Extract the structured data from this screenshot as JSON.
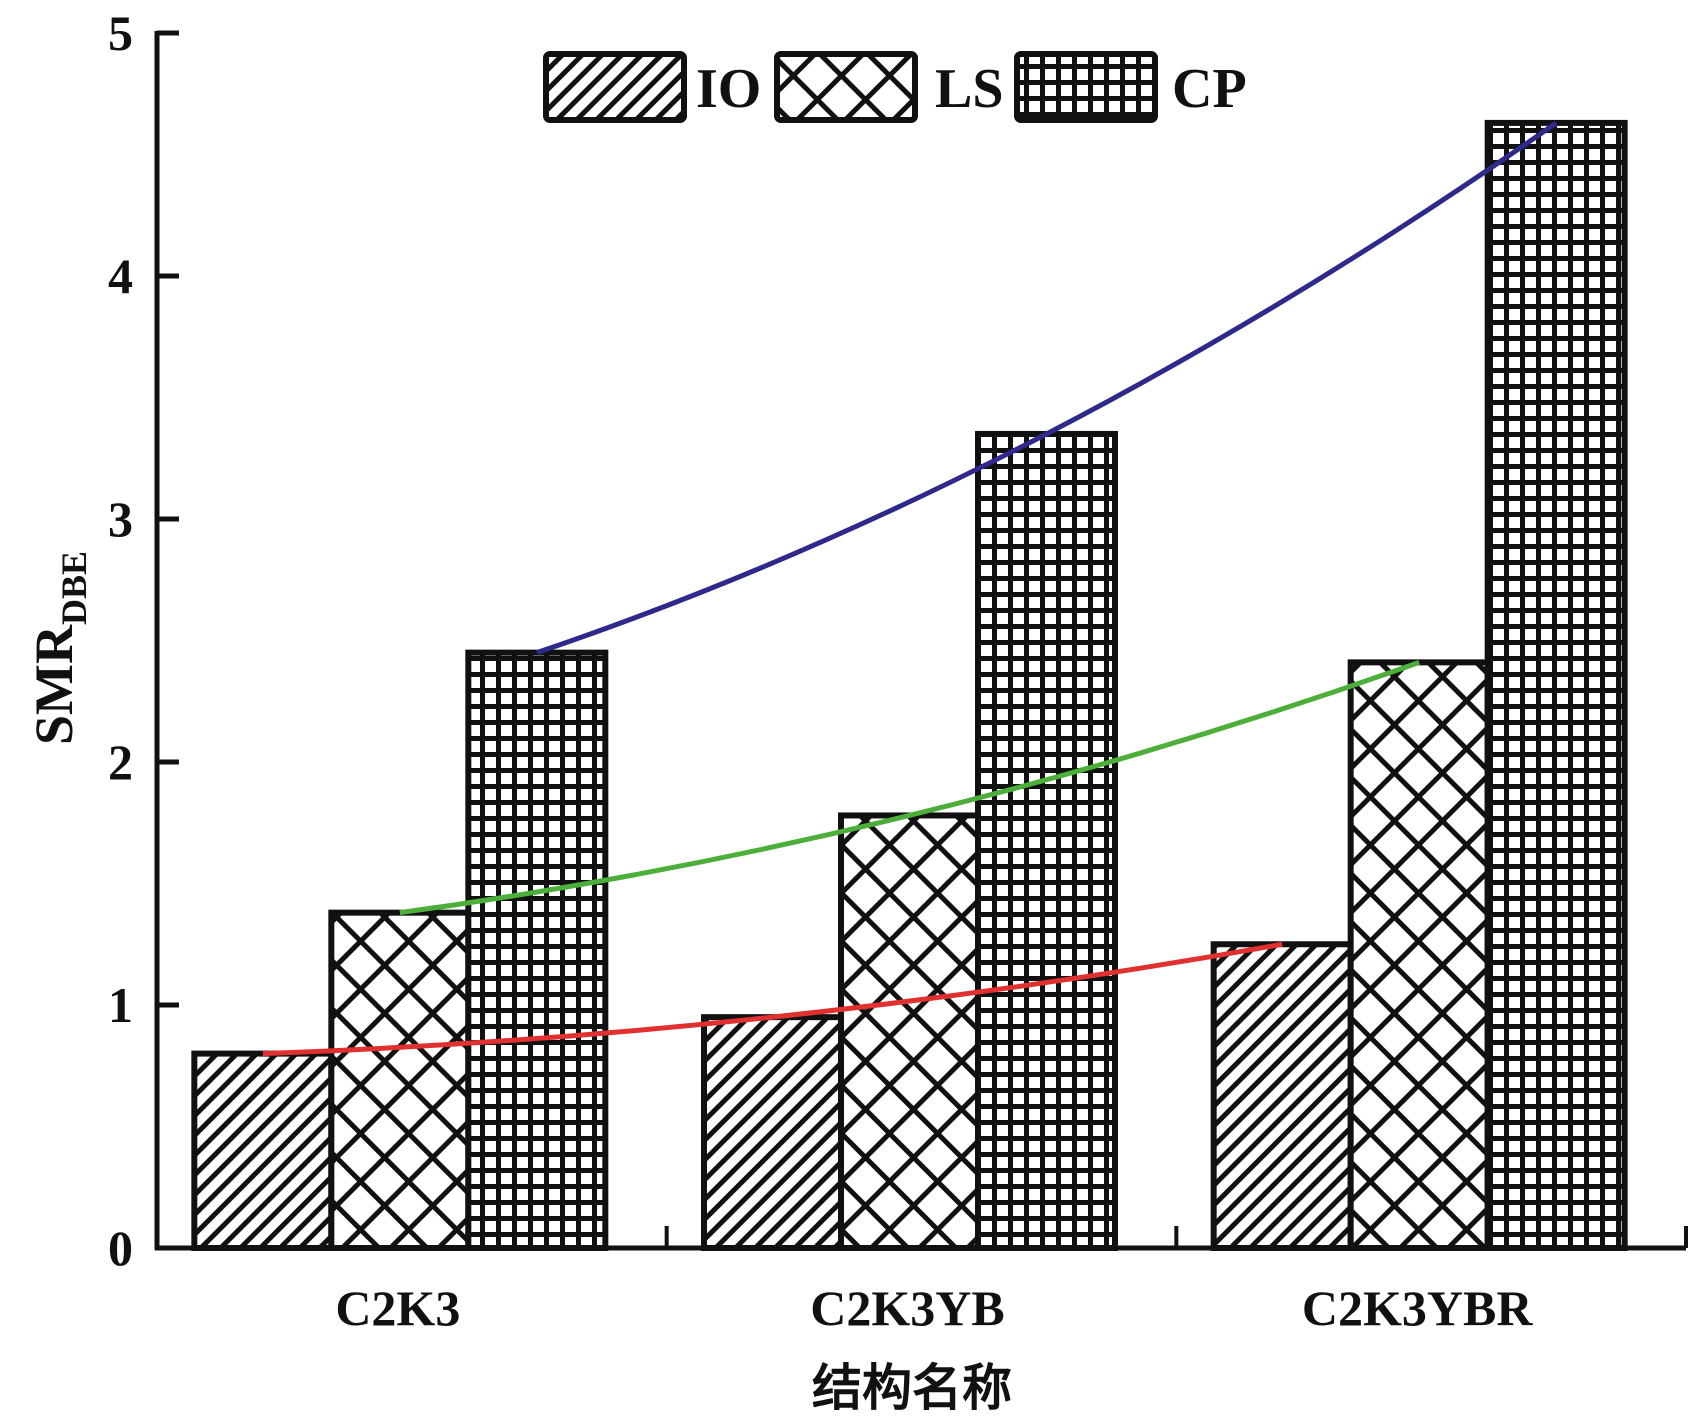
{
  "chart_data": {
    "type": "bar",
    "title": "",
    "xlabel": "结构名称",
    "ylabel": "SMR",
    "ylabel_subscript": "DBE",
    "ylim": [
      0,
      5
    ],
    "yticks": [
      0,
      1,
      2,
      3,
      4,
      5
    ],
    "ytick_labels": [
      "0",
      "1",
      "2",
      "3",
      "4",
      "5"
    ],
    "grid": false,
    "legend_position": "top-center",
    "categories": [
      "C2K3",
      "C2K3YB",
      "C2K3YBR"
    ],
    "series": [
      {
        "name": "IO",
        "pattern": "diagonal-hatch",
        "trend_color": "#e03030",
        "values": [
          0.8,
          0.95,
          1.25
        ]
      },
      {
        "name": "LS",
        "pattern": "cross-hatch",
        "trend_color": "#4caf3a",
        "values": [
          1.38,
          1.78,
          2.41
        ]
      },
      {
        "name": "CP",
        "pattern": "grid",
        "trend_color": "#2e2a8c",
        "values": [
          2.45,
          3.35,
          4.63
        ]
      }
    ],
    "trend_lines": [
      {
        "series": "IO",
        "color": "#e03030"
      },
      {
        "series": "LS",
        "color": "#4caf3a"
      },
      {
        "series": "CP",
        "color": "#2e2a8c"
      }
    ]
  }
}
